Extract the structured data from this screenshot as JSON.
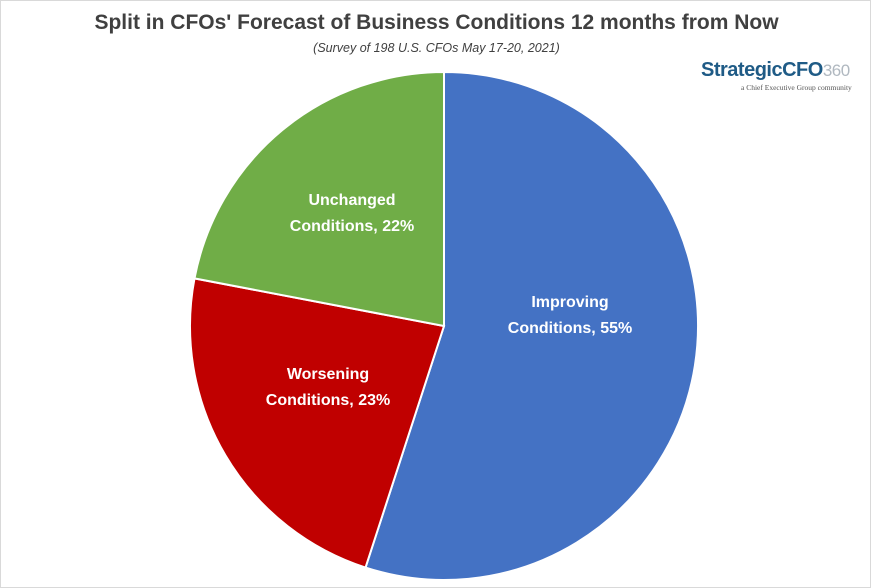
{
  "chart_data": {
    "type": "pie",
    "title": "Split in CFOs' Forecast of Business Conditions 12 months from Now",
    "subtitle": "(Survey of 198 U.S. CFOs May 17-20, 2021)",
    "slices": [
      {
        "label_line1": "Improving",
        "label_line2": "Conditions, 55%",
        "category": "Improving Conditions",
        "value": 55,
        "color": "#4472c4"
      },
      {
        "label_line1": "Worsening",
        "label_line2": "Conditions, 23%",
        "category": "Worsening Conditions",
        "value": 23,
        "color": "#c00000"
      },
      {
        "label_line1": "Unchanged",
        "label_line2": "Conditions, 22%",
        "category": "Unchanged Conditions",
        "value": 22,
        "color": "#70ad47"
      }
    ],
    "start_angle": "12 o'clock",
    "direction": "clockwise",
    "legend": "none"
  },
  "logo": {
    "main": "StrategicCFO",
    "suffix": "360",
    "tagline": "a Chief Executive Group community"
  }
}
